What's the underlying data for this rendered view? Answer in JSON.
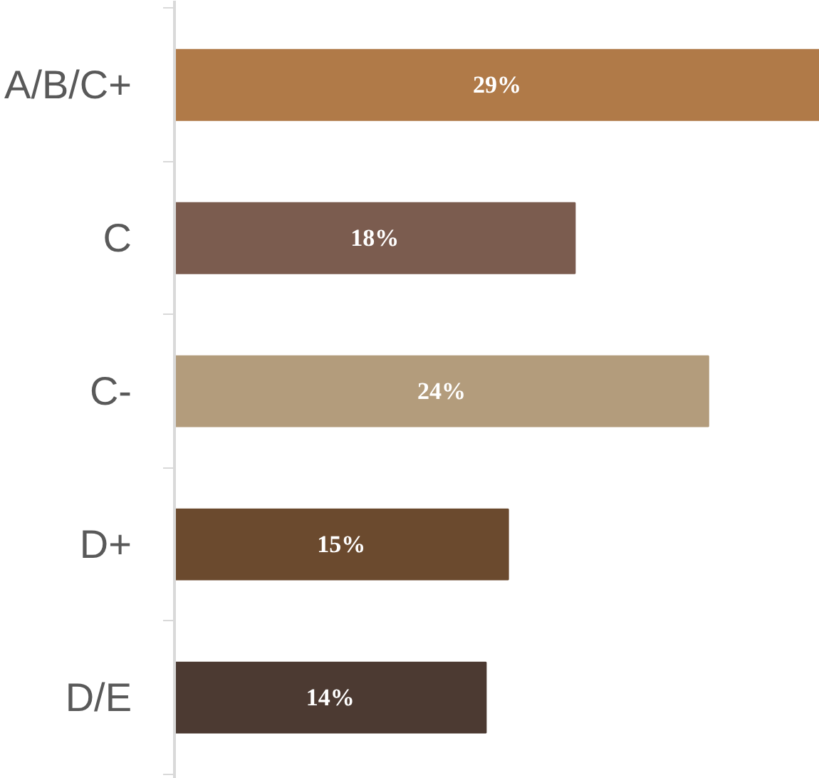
{
  "chart_data": {
    "type": "bar",
    "orientation": "horizontal",
    "categories": [
      "A/B/C+",
      "C",
      "C-",
      "D+",
      "D/E"
    ],
    "values": [
      29,
      18,
      24,
      15,
      14
    ],
    "colors": [
      "#b07a48",
      "#7b5c4f",
      "#b39c7c",
      "#6b4a2e",
      "#4c3a32"
    ],
    "value_labels": [
      "29%",
      "18%",
      "24%",
      "15%",
      "14%"
    ],
    "tick_labels": "y"
  }
}
